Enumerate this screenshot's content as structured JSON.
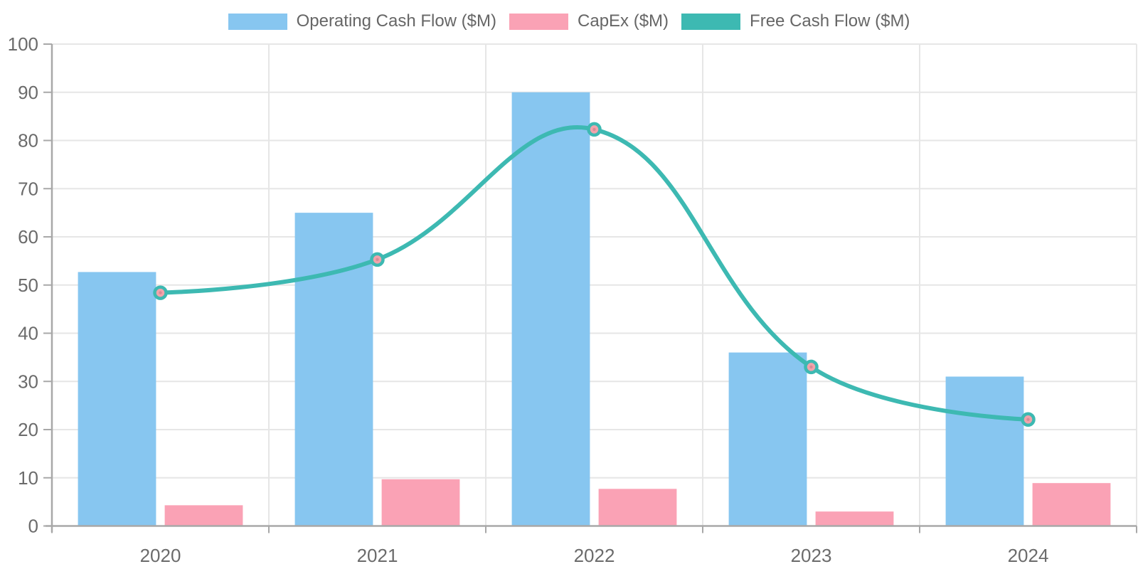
{
  "chart_data": {
    "type": "bar",
    "subtype": "grouped-bars-with-line-overlay",
    "title": "",
    "xlabel": "",
    "ylabel": "",
    "categories": [
      "2020",
      "2021",
      "2022",
      "2023",
      "2024"
    ],
    "series": [
      {
        "name": "Operating Cash Flow ($M)",
        "render": "bar",
        "color": "#87C6F0",
        "values": [
          52.7,
          65,
          90,
          36,
          31
        ]
      },
      {
        "name": "CapEx ($M)",
        "render": "bar",
        "color": "#FAA2B5",
        "values": [
          4.3,
          9.7,
          7.7,
          3,
          8.9
        ]
      },
      {
        "name": "Free Cash Flow ($M)",
        "render": "line",
        "color": "#3DB9B2",
        "point_fill": "#F2A3AB",
        "point_dot": "#D98B96",
        "values": [
          48.4,
          55.3,
          82.3,
          33,
          22.1
        ]
      }
    ],
    "ylim": [
      0,
      100
    ],
    "y_tick_step": 10,
    "y_tick_labels": [
      "0",
      "10",
      "20",
      "30",
      "40",
      "50",
      "60",
      "70",
      "80",
      "90",
      "100"
    ],
    "grid": true,
    "legend_position": "top",
    "axis_color": "#A8A8A8",
    "grid_color": "#E6E6E6",
    "tick_label_color": "#6B6B6B"
  }
}
